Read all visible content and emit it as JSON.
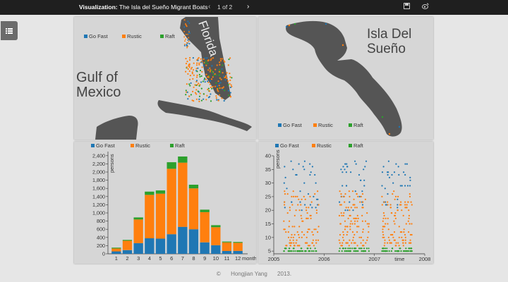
{
  "topbar": {
    "title_bold": "Visualization:",
    "title_rest": " The Isla del Sueño Migrant Boats",
    "page_indicator": "1 of 2",
    "prev_glyph": "‹",
    "next_glyph": "›"
  },
  "colors": {
    "go_fast": "#1f77b4",
    "rustic": "#ff7f0e",
    "raft": "#2ca02c"
  },
  "legend": [
    "Go Fast",
    "Rustic",
    "Raft"
  ],
  "map_left": {
    "label_gulf": "Gulf of Mexico",
    "label_florida": "Florida"
  },
  "map_right": {
    "label_island": "Isla Del Sueño"
  },
  "chart_data": [
    {
      "type": "bar",
      "stacked": true,
      "title": "",
      "xlabel": "month",
      "ylabel": "persons",
      "categories": [
        "1",
        "2",
        "3",
        "4",
        "5",
        "6",
        "7",
        "8",
        "9",
        "10",
        "11",
        "12"
      ],
      "series": [
        {
          "name": "Go Fast",
          "values": [
            60,
            90,
            260,
            380,
            370,
            480,
            660,
            600,
            280,
            210,
            70,
            70
          ]
        },
        {
          "name": "Rustic",
          "values": [
            70,
            230,
            580,
            1060,
            1100,
            1600,
            1570,
            1000,
            740,
            440,
            210,
            200
          ]
        },
        {
          "name": "Raft",
          "values": [
            20,
            20,
            50,
            80,
            80,
            160,
            150,
            90,
            60,
            50,
            20,
            20
          ]
        }
      ],
      "ylim": [
        0,
        2500
      ],
      "yticks": [
        0,
        200,
        400,
        600,
        800,
        1000,
        1200,
        1400,
        1600,
        1800,
        2000,
        2200,
        2400
      ],
      "legend_position": "top"
    },
    {
      "type": "scatter",
      "title": "",
      "xlabel": "time",
      "ylabel": "persons",
      "xticks": [
        "2005",
        "2006",
        "2007",
        "2008"
      ],
      "xlim": [
        2005,
        2008
      ],
      "ylim": [
        4,
        40
      ],
      "yticks": [
        5,
        10,
        15,
        20,
        25,
        30,
        35,
        40
      ],
      "clusters": [
        {
          "name": "Go Fast",
          "x_ranges": [
            [
              2005.2,
              2005.9
            ],
            [
              2006.3,
              2006.9
            ],
            [
              2007.15,
              2007.75
            ]
          ],
          "y_range": [
            20,
            38
          ]
        },
        {
          "name": "Rustic",
          "x_ranges": [
            [
              2005.2,
              2005.9
            ],
            [
              2006.3,
              2006.9
            ],
            [
              2007.15,
              2007.75
            ]
          ],
          "y_range": [
            7,
            27
          ]
        },
        {
          "name": "Raft",
          "x_ranges": [
            [
              2005.2,
              2005.9
            ],
            [
              2006.3,
              2006.9
            ],
            [
              2007.15,
              2007.75
            ]
          ],
          "y_range": [
            4.8,
            6.5
          ]
        }
      ],
      "legend_position": "top"
    }
  ],
  "footer": {
    "copyright": "©",
    "author": "Hongjian Yang",
    "year": "2013."
  }
}
